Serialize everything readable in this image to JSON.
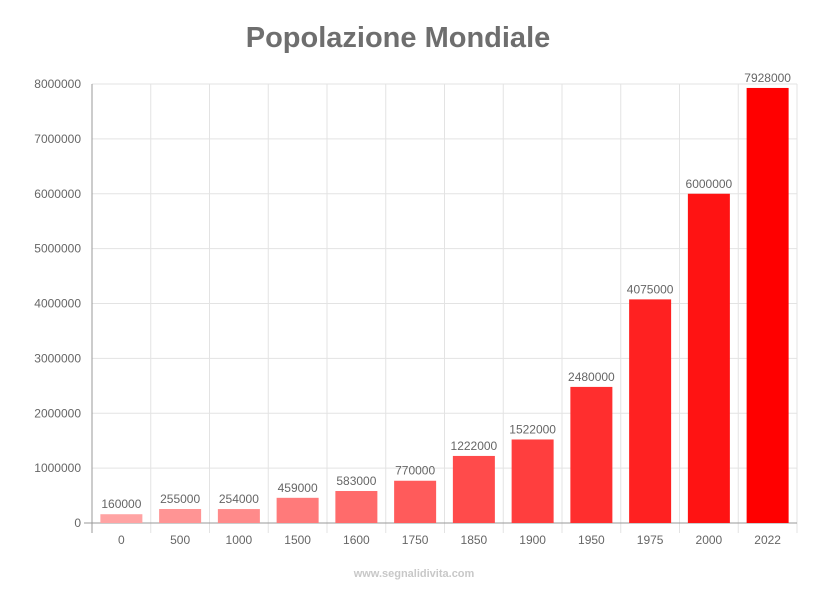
{
  "chart_data": {
    "type": "bar",
    "title": "Popolazione Mondiale",
    "categories": [
      "0",
      "500",
      "1000",
      "1500",
      "1600",
      "1750",
      "1850",
      "1900",
      "1950",
      "1975",
      "2000",
      "2022"
    ],
    "values": [
      160000,
      255000,
      254000,
      459000,
      583000,
      770000,
      1222000,
      1522000,
      2480000,
      4075000,
      6000000,
      7928000
    ],
    "colors": [
      "#ffa3a3",
      "#ff9494",
      "#ff8a8a",
      "#ff7a7a",
      "#ff6b6b",
      "#ff5b5b",
      "#ff4b4b",
      "#ff3e3e",
      "#ff2e2e",
      "#ff2121",
      "#ff1313",
      "#ff0000"
    ],
    "ylim": [
      0,
      8000000
    ],
    "yticks": [
      0,
      1000000,
      2000000,
      3000000,
      4000000,
      5000000,
      6000000,
      7000000,
      8000000
    ],
    "xlabel": "",
    "ylabel": "",
    "grid": true,
    "data_labels": true,
    "legend": "none"
  },
  "footer": "www.segnalidivita.com"
}
